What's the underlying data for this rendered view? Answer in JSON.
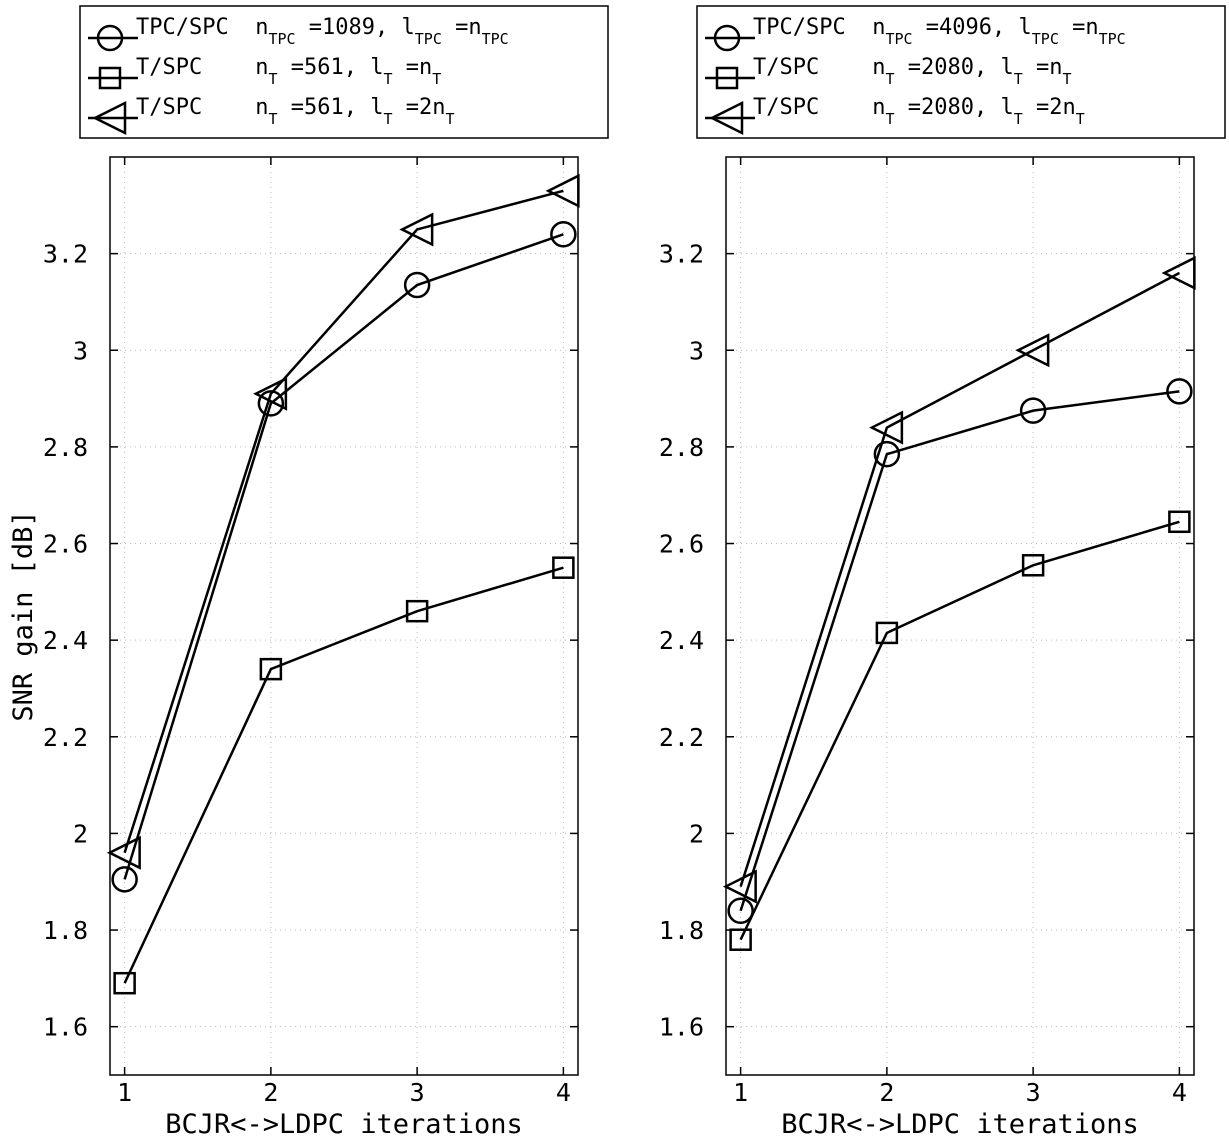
{
  "chart_data": [
    {
      "type": "line",
      "panel": "left",
      "xlabel": "BCJR<->LDPC iterations",
      "ylabel": "SNR gain [dB]",
      "x": [
        1,
        2,
        3,
        4
      ],
      "xlim": [
        0.9,
        4.1
      ],
      "ylim": [
        1.5,
        3.4
      ],
      "xticks": [
        "1",
        "2",
        "3",
        "4"
      ],
      "yticks": [
        "1.6",
        "1.8",
        "2",
        "2.2",
        "2.4",
        "2.6",
        "2.8",
        "3",
        "3.2"
      ],
      "grid": true,
      "legend": "top",
      "series": [
        {
          "name": "TPC/SPC",
          "marker": "circle",
          "values": [
            1.905,
            2.89,
            3.135,
            3.24
          ],
          "legend_parts": [
            "TPC/SPC  n",
            "TPC",
            " =1089, l",
            "TPC",
            " =n",
            "TPC"
          ]
        },
        {
          "name": "T/SPC",
          "marker": "square",
          "values": [
            1.69,
            2.34,
            2.46,
            2.55
          ],
          "legend_parts": [
            "T/SPC    n",
            "T",
            " =561, l",
            "T",
            " =n",
            "T"
          ]
        },
        {
          "name": "T/SPC",
          "marker": "triangle",
          "values": [
            1.96,
            2.91,
            3.25,
            3.33
          ],
          "legend_parts": [
            "T/SPC    n",
            "T",
            " =561, l",
            "T",
            " =2n",
            "T"
          ]
        }
      ]
    },
    {
      "type": "line",
      "panel": "right",
      "xlabel": "BCJR<->LDPC iterations",
      "ylabel": "",
      "x": [
        1,
        2,
        3,
        4
      ],
      "xlim": [
        0.9,
        4.1
      ],
      "ylim": [
        1.5,
        3.4
      ],
      "xticks": [
        "1",
        "2",
        "3",
        "4"
      ],
      "yticks": [
        "1.6",
        "1.8",
        "2",
        "2.2",
        "2.4",
        "2.6",
        "2.8",
        "3",
        "3.2"
      ],
      "grid": true,
      "legend": "top",
      "series": [
        {
          "name": "TPC/SPC",
          "marker": "circle",
          "values": [
            1.84,
            2.785,
            2.875,
            2.915
          ],
          "legend_parts": [
            "TPC/SPC  n",
            "TPC",
            " =4096, l",
            "TPC",
            " =n",
            "TPC"
          ]
        },
        {
          "name": "T/SPC",
          "marker": "square",
          "values": [
            1.78,
            2.415,
            2.555,
            2.645
          ],
          "legend_parts": [
            "T/SPC    n",
            "T",
            " =2080, l",
            "T",
            " =n",
            "T"
          ]
        },
        {
          "name": "T/SPC",
          "marker": "triangle",
          "values": [
            1.89,
            2.84,
            3.0,
            3.16
          ],
          "legend_parts": [
            "T/SPC    n",
            "T",
            " =2080, l",
            "T",
            " =2n",
            "T"
          ]
        }
      ]
    }
  ]
}
